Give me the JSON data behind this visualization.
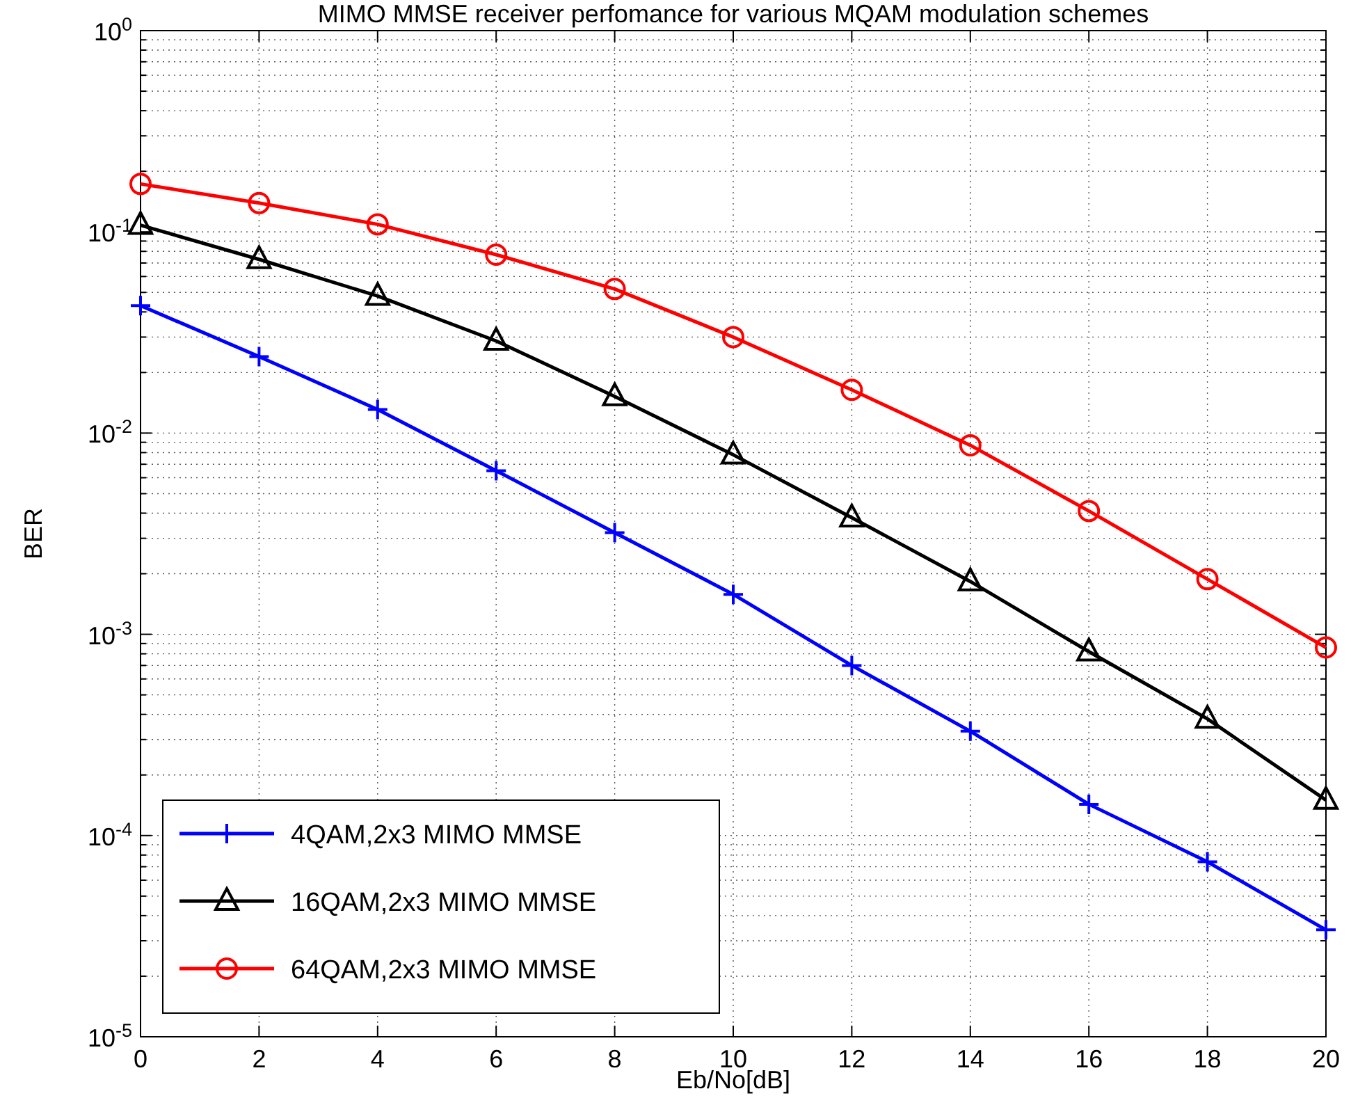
{
  "chart_data": {
    "type": "line",
    "title": "MIMO MMSE receiver perfomance for various MQAM modulation schemes",
    "xlabel": "Eb/No[dB]",
    "ylabel": "BER",
    "x": [
      0,
      2,
      4,
      6,
      8,
      10,
      12,
      14,
      16,
      18,
      20
    ],
    "series": [
      {
        "name": "4QAM,2x3 MIMO MMSE",
        "color": "#0000ff",
        "marker": "cross",
        "values": [
          0.043,
          0.024,
          0.0131,
          0.0065,
          0.0032,
          0.00158,
          0.0007,
          0.00033,
          0.000143,
          7.4e-05,
          3.4e-05
        ]
      },
      {
        "name": "16QAM,2x3 MIMO MMSE",
        "color": "#000000",
        "marker": "triangle",
        "values": [
          0.108,
          0.073,
          0.048,
          0.0287,
          0.0152,
          0.0078,
          0.0038,
          0.00183,
          0.00082,
          0.00038,
          0.00015
        ]
      },
      {
        "name": "64QAM,2x3 MIMO MMSE",
        "color": "#ff0000",
        "marker": "circle",
        "values": [
          0.173,
          0.139,
          0.109,
          0.077,
          0.052,
          0.03,
          0.0164,
          0.0087,
          0.0041,
          0.00188,
          0.00086
        ]
      }
    ],
    "log": true,
    "xlim": [
      0,
      20
    ],
    "xticks": [
      0,
      2,
      4,
      6,
      8,
      10,
      12,
      14,
      16,
      18,
      20
    ],
    "ylim": [
      1e-05,
      1
    ],
    "yticks": [
      {
        "value": 1e-05,
        "label": "10$^{-5}$"
      },
      {
        "value": 2e-05,
        "label": null
      },
      {
        "value": 3e-05,
        "label": null
      },
      {
        "value": 4e-05,
        "label": null
      },
      {
        "value": 5e-05,
        "label": null
      },
      {
        "value": 6e-05,
        "label": null
      },
      {
        "value": 7e-05,
        "label": null
      },
      {
        "value": 8e-05,
        "label": null
      },
      {
        "value": 9e-05,
        "label": null
      },
      {
        "value": 0.0001,
        "label": "10$^{-4}$"
      },
      {
        "value": 0.0002,
        "label": null
      },
      {
        "value": 0.0003,
        "label": null
      },
      {
        "value": 0.0004,
        "label": null
      },
      {
        "value": 0.0005,
        "label": null
      },
      {
        "value": 0.0006,
        "label": null
      },
      {
        "value": 0.0007,
        "label": null
      },
      {
        "value": 0.0008,
        "label": null
      },
      {
        "value": 0.0009,
        "label": null
      },
      {
        "value": 0.001,
        "label": "10$^{-3}$"
      },
      {
        "value": 0.002,
        "label": null
      },
      {
        "value": 0.003,
        "label": null
      },
      {
        "value": 0.004,
        "label": null
      },
      {
        "value": 0.005,
        "label": null
      },
      {
        "value": 0.006,
        "label": null
      },
      {
        "value": 0.007,
        "label": null
      },
      {
        "value": 0.008,
        "label": null
      },
      {
        "value": 0.009,
        "label": null
      },
      {
        "value": 0.01,
        "label": "10$^{-2}$"
      },
      {
        "value": 0.02,
        "label": null
      },
      {
        "value": 0.03,
        "label": null
      },
      {
        "value": 0.04,
        "label": null
      },
      {
        "value": 0.05,
        "label": null
      },
      {
        "value": 0.06,
        "label": null
      },
      {
        "value": 0.07,
        "label": null
      },
      {
        "value": 0.08,
        "label": null
      },
      {
        "value": 0.09,
        "label": null
      },
      {
        "value": 0.1,
        "label": "10$^{-1}$"
      },
      {
        "value": 0.2,
        "label": null
      },
      {
        "value": 0.3,
        "label": null
      },
      {
        "value": 0.4,
        "label": null
      },
      {
        "value": 0.5,
        "label": null
      },
      {
        "value": 0.6,
        "label": null
      },
      {
        "value": 0.7,
        "label": null
      },
      {
        "value": 0.8,
        "label": null
      },
      {
        "value": 0.9,
        "label": null
      },
      {
        "value": 1,
        "label": "10$^{0}$"
      }
    ],
    "grid": true,
    "legend": "bottom left",
    "line_style": "solid"
  }
}
